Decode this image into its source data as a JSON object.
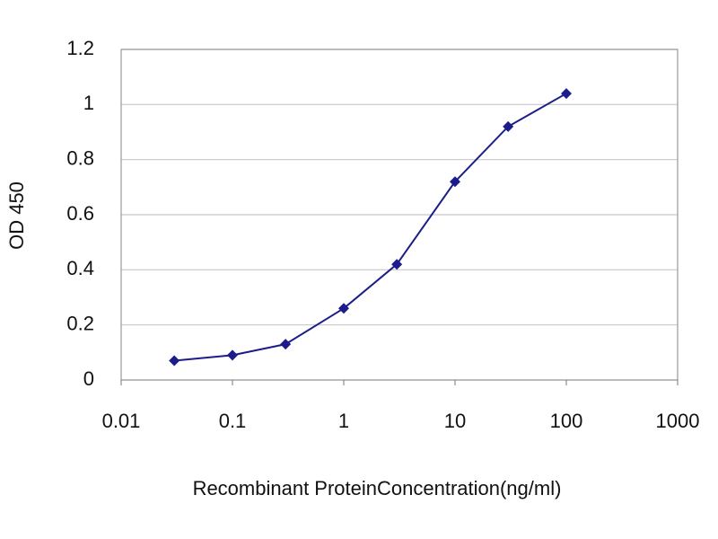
{
  "chart_data": {
    "type": "line",
    "xlabel": "Recombinant ProteinConcentration(ng/ml)",
    "ylabel": "OD 450",
    "x": [
      0.03,
      0.1,
      0.3,
      1,
      3,
      10,
      30,
      100
    ],
    "values": [
      0.07,
      0.09,
      0.13,
      0.26,
      0.42,
      0.72,
      0.92,
      1.04
    ],
    "color": "#1c1c8a",
    "xscale": "log",
    "xlim": [
      0.01,
      1000
    ],
    "xticks": [
      0.01,
      0.1,
      1,
      10,
      100,
      1000
    ],
    "ylim": [
      0,
      1.2
    ],
    "yticks": [
      0,
      0.2,
      0.4,
      0.6,
      0.8,
      1,
      1.2
    ],
    "grid": true
  }
}
